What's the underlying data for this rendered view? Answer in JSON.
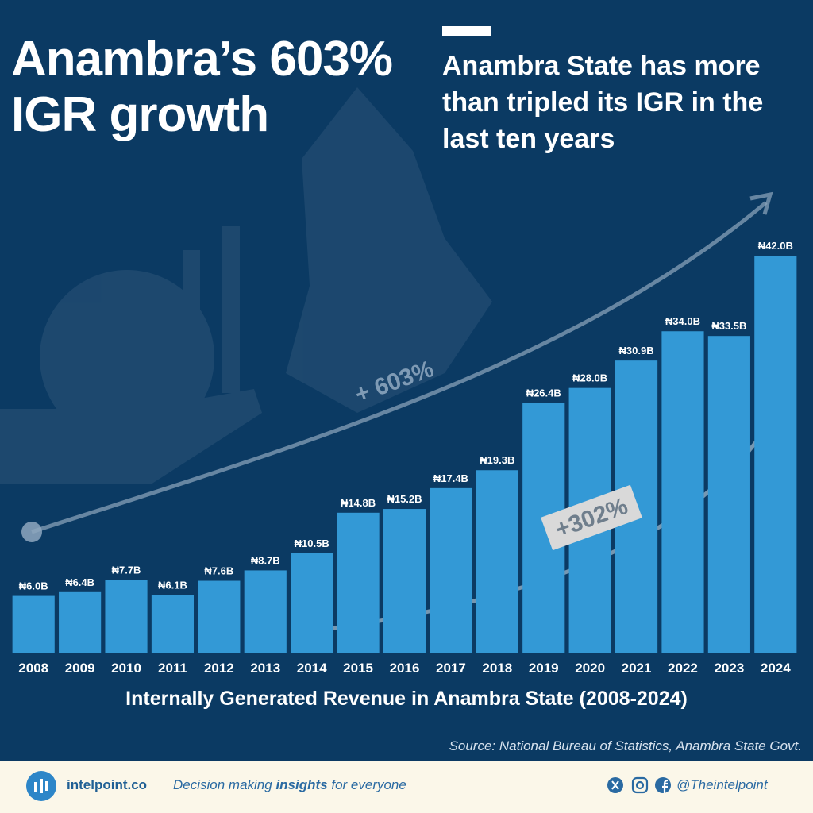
{
  "chart_data": {
    "type": "bar",
    "title": "Anambra’s 603% IGR growth",
    "subtitle": "Anambra State has more than tripled its IGR in the last ten years",
    "x_label": "Internally Generated Revenue in Anambra State (2008-2024)",
    "source": "Source: National Bureau of Statistics, Anambra State Govt.",
    "categories": [
      "2008",
      "2009",
      "2010",
      "2011",
      "2012",
      "2013",
      "2014",
      "2015",
      "2016",
      "2017",
      "2018",
      "2019",
      "2020",
      "2021",
      "2022",
      "2023",
      "2024"
    ],
    "values": [
      6.0,
      6.4,
      7.7,
      6.1,
      7.6,
      8.7,
      10.5,
      14.8,
      15.2,
      17.4,
      19.3,
      26.4,
      28.0,
      30.9,
      34.0,
      33.5,
      42.0
    ],
    "value_labels": [
      "₦6.0B",
      "₦6.4B",
      "₦7.7B",
      "₦6.1B",
      "₦7.6B",
      "₦8.7B",
      "₦10.5B",
      "₦14.8B",
      "₦15.2B",
      "₦17.4B",
      "₦19.3B",
      "₦26.4B",
      "₦28.0B",
      "₦30.9B",
      "₦34.0B",
      "₦33.5B",
      "₦42.0B"
    ],
    "color": "#3399d6",
    "annotations": [
      "+ 603%",
      "+302%"
    ]
  },
  "footer": {
    "brand": "intelpoint.co",
    "tagline": [
      "Decision making ",
      "insights",
      " for everyone"
    ],
    "handle": "@Theintelpoint"
  }
}
